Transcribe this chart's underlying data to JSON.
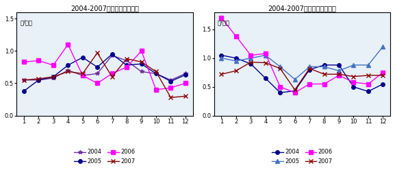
{
  "chart1": {
    "title": "2004-2007年大白菜批发价格",
    "ylabel": "元/公斤",
    "ylim": [
      0.0,
      1.6
    ],
    "yticks": [
      0.0,
      0.5,
      1.0,
      1.5
    ],
    "ytick_labels": [
      "0.0",
      "0.5",
      "1.0",
      "1.5"
    ],
    "series": {
      "2004": {
        "color": "#7030a0",
        "marker": "*",
        "data": [
          0.55,
          0.55,
          0.58,
          0.7,
          0.62,
          0.65,
          0.93,
          0.85,
          0.68,
          0.65,
          0.55,
          0.65
        ]
      },
      "2005": {
        "color": "#00008B",
        "marker": "o",
        "data": [
          0.38,
          0.55,
          0.6,
          0.78,
          0.9,
          0.75,
          0.95,
          0.78,
          0.8,
          0.65,
          0.53,
          0.63
        ]
      },
      "2006": {
        "color": "#ff00ff",
        "marker": "s",
        "data": [
          0.83,
          0.85,
          0.78,
          1.1,
          0.62,
          0.5,
          0.65,
          0.75,
          1.0,
          0.4,
          0.43,
          0.5
        ]
      },
      "2007": {
        "color": "#8B0000",
        "marker": "x",
        "data": [
          0.55,
          0.57,
          0.6,
          0.68,
          0.65,
          0.97,
          0.6,
          0.88,
          0.83,
          0.68,
          0.28,
          0.3
        ]
      }
    }
  },
  "chart2": {
    "title": "2004-2007年洋白菜批发价格",
    "ylabel": "元/公斤",
    "ylim": [
      0.0,
      1.8
    ],
    "yticks": [
      0.0,
      0.5,
      1.0,
      1.5
    ],
    "ytick_labels": [
      "0.0",
      "0.5",
      "1.0",
      "1.5"
    ],
    "series": {
      "2004": {
        "color": "#00008B",
        "marker": "o",
        "data": [
          1.05,
          1.0,
          0.9,
          0.65,
          0.4,
          0.43,
          0.8,
          0.88,
          0.88,
          0.5,
          0.42,
          0.55
        ]
      },
      "2005": {
        "color": "#4472c4",
        "marker": "^",
        "data": [
          1.0,
          0.95,
          1.0,
          1.05,
          0.85,
          0.63,
          0.85,
          0.85,
          0.78,
          0.88,
          0.88,
          1.2
        ]
      },
      "2006": {
        "color": "#ff00ff",
        "marker": "s",
        "data": [
          1.7,
          1.38,
          1.05,
          1.08,
          0.5,
          0.4,
          0.55,
          0.55,
          0.7,
          0.58,
          0.55,
          0.75
        ]
      },
      "2007": {
        "color": "#8B0000",
        "marker": "x",
        "data": [
          0.72,
          0.78,
          0.93,
          0.92,
          0.82,
          0.45,
          0.82,
          0.72,
          0.72,
          0.68,
          0.7,
          0.7
        ]
      }
    }
  },
  "legend_order1": [
    "2004",
    "2005",
    "2006",
    "2007"
  ],
  "legend_order2": [
    "2004",
    "2005",
    "2006",
    "2007"
  ],
  "xlabel_months": [
    1,
    2,
    3,
    4,
    5,
    6,
    7,
    8,
    9,
    10,
    11,
    12
  ],
  "background_color": "#e8f0f8"
}
